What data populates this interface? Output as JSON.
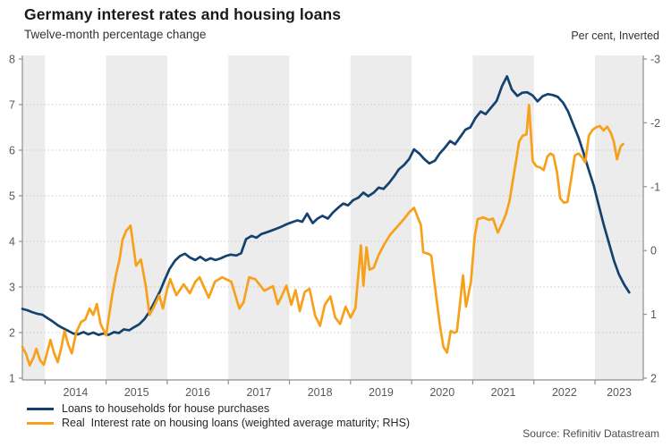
{
  "chart_data": {
    "type": "line",
    "title": "Germany interest rates and housing loans",
    "subtitle": "Twelve-month percentage change",
    "right_axis_note": "Per cent, Inverted",
    "source": "Source: Refinitiv Datastream",
    "palette": {
      "loans_line": "#14426f",
      "real_rate_line": "#F7A11A",
      "band_fill": "#ececec",
      "gridline": "#c8c8c8",
      "axis": "#8f8f8f",
      "tick_text": "#595959"
    },
    "x_domain": [
      2013.63,
      2023.79
    ],
    "x_ticks": [
      2014,
      2015,
      2016,
      2017,
      2018,
      2019,
      2020,
      2021,
      2022,
      2023
    ],
    "bands": [
      [
        2013.63,
        2014
      ],
      [
        2015,
        2016
      ],
      [
        2017,
        2018
      ],
      [
        2019,
        2020
      ],
      [
        2021,
        2022
      ],
      [
        2023,
        2023.79
      ]
    ],
    "left_axis": {
      "min": 1,
      "max": 8,
      "ticks": [
        8,
        7,
        6,
        5,
        4,
        3,
        2,
        1
      ],
      "grid_values": [
        7,
        6,
        5,
        4,
        3,
        2
      ]
    },
    "right_axis": {
      "min": -3,
      "max": 2,
      "ticks": [
        -3,
        -2,
        -1,
        0,
        1,
        2
      ],
      "inverted": true
    },
    "legend_position": "bottom-left",
    "grid": "dotted-horizontal",
    "series": [
      {
        "name": "Loans to households for house purchases",
        "axis": "left",
        "color": "#14426f",
        "points": [
          [
            2013.63,
            2.52
          ],
          [
            2013.71,
            2.49
          ],
          [
            2013.79,
            2.45
          ],
          [
            2013.88,
            2.41
          ],
          [
            2013.96,
            2.39
          ],
          [
            2014.04,
            2.32
          ],
          [
            2014.13,
            2.24
          ],
          [
            2014.21,
            2.16
          ],
          [
            2014.29,
            2.1
          ],
          [
            2014.38,
            2.04
          ],
          [
            2014.46,
            1.98
          ],
          [
            2014.54,
            1.96
          ],
          [
            2014.63,
            2.01
          ],
          [
            2014.71,
            1.96
          ],
          [
            2014.79,
            2.0
          ],
          [
            2014.88,
            1.95
          ],
          [
            2014.96,
            1.98
          ],
          [
            2015.04,
            1.95
          ],
          [
            2015.13,
            2.01
          ],
          [
            2015.21,
            1.99
          ],
          [
            2015.29,
            2.07
          ],
          [
            2015.38,
            2.05
          ],
          [
            2015.46,
            2.12
          ],
          [
            2015.54,
            2.18
          ],
          [
            2015.63,
            2.3
          ],
          [
            2015.71,
            2.46
          ],
          [
            2015.79,
            2.66
          ],
          [
            2015.88,
            2.9
          ],
          [
            2015.96,
            3.16
          ],
          [
            2016.04,
            3.4
          ],
          [
            2016.13,
            3.58
          ],
          [
            2016.21,
            3.68
          ],
          [
            2016.29,
            3.73
          ],
          [
            2016.38,
            3.64
          ],
          [
            2016.46,
            3.59
          ],
          [
            2016.54,
            3.66
          ],
          [
            2016.63,
            3.58
          ],
          [
            2016.71,
            3.63
          ],
          [
            2016.79,
            3.59
          ],
          [
            2016.88,
            3.63
          ],
          [
            2016.96,
            3.68
          ],
          [
            2017.04,
            3.71
          ],
          [
            2017.13,
            3.69
          ],
          [
            2017.21,
            3.74
          ],
          [
            2017.29,
            4.05
          ],
          [
            2017.38,
            4.12
          ],
          [
            2017.46,
            4.08
          ],
          [
            2017.54,
            4.16
          ],
          [
            2017.63,
            4.2
          ],
          [
            2017.71,
            4.24
          ],
          [
            2017.79,
            4.28
          ],
          [
            2017.88,
            4.33
          ],
          [
            2017.96,
            4.38
          ],
          [
            2018.04,
            4.42
          ],
          [
            2018.13,
            4.46
          ],
          [
            2018.21,
            4.43
          ],
          [
            2018.29,
            4.61
          ],
          [
            2018.38,
            4.4
          ],
          [
            2018.46,
            4.5
          ],
          [
            2018.54,
            4.56
          ],
          [
            2018.63,
            4.5
          ],
          [
            2018.71,
            4.63
          ],
          [
            2018.79,
            4.73
          ],
          [
            2018.88,
            4.83
          ],
          [
            2018.96,
            4.79
          ],
          [
            2019.04,
            4.9
          ],
          [
            2019.13,
            4.96
          ],
          [
            2019.21,
            5.07
          ],
          [
            2019.29,
            4.99
          ],
          [
            2019.38,
            5.07
          ],
          [
            2019.46,
            5.18
          ],
          [
            2019.54,
            5.15
          ],
          [
            2019.63,
            5.28
          ],
          [
            2019.71,
            5.42
          ],
          [
            2019.79,
            5.58
          ],
          [
            2019.88,
            5.68
          ],
          [
            2019.96,
            5.81
          ],
          [
            2020.04,
            6.02
          ],
          [
            2020.13,
            5.92
          ],
          [
            2020.21,
            5.8
          ],
          [
            2020.29,
            5.71
          ],
          [
            2020.38,
            5.77
          ],
          [
            2020.46,
            5.93
          ],
          [
            2020.54,
            6.05
          ],
          [
            2020.63,
            6.2
          ],
          [
            2020.71,
            6.13
          ],
          [
            2020.79,
            6.28
          ],
          [
            2020.88,
            6.45
          ],
          [
            2020.96,
            6.5
          ],
          [
            2021.04,
            6.7
          ],
          [
            2021.13,
            6.85
          ],
          [
            2021.21,
            6.79
          ],
          [
            2021.39,
            7.08
          ],
          [
            2021.48,
            7.41
          ],
          [
            2021.56,
            7.62
          ],
          [
            2021.64,
            7.33
          ],
          [
            2021.73,
            7.19
          ],
          [
            2021.81,
            7.26
          ],
          [
            2021.89,
            7.27
          ],
          [
            2021.98,
            7.2
          ],
          [
            2022.06,
            7.07
          ],
          [
            2022.14,
            7.18
          ],
          [
            2022.23,
            7.23
          ],
          [
            2022.31,
            7.21
          ],
          [
            2022.39,
            7.17
          ],
          [
            2022.48,
            7.04
          ],
          [
            2022.56,
            6.85
          ],
          [
            2022.64,
            6.58
          ],
          [
            2022.73,
            6.28
          ],
          [
            2022.81,
            5.95
          ],
          [
            2022.89,
            5.6
          ],
          [
            2022.98,
            5.22
          ],
          [
            2023.06,
            4.8
          ],
          [
            2023.14,
            4.38
          ],
          [
            2023.23,
            3.96
          ],
          [
            2023.31,
            3.58
          ],
          [
            2023.39,
            3.28
          ],
          [
            2023.48,
            3.05
          ],
          [
            2023.56,
            2.88
          ]
        ]
      },
      {
        "name": "Real  Interest rate on housing loans (weighted average maturity; RHS)",
        "axis": "right",
        "color": "#F7A11A",
        "points": [
          [
            2013.63,
            1.51
          ],
          [
            2013.69,
            1.62
          ],
          [
            2013.75,
            1.8
          ],
          [
            2013.81,
            1.68
          ],
          [
            2013.86,
            1.54
          ],
          [
            2013.92,
            1.72
          ],
          [
            2013.98,
            1.79
          ],
          [
            2014.03,
            1.62
          ],
          [
            2014.09,
            1.4
          ],
          [
            2014.15,
            1.61
          ],
          [
            2014.21,
            1.75
          ],
          [
            2014.27,
            1.51
          ],
          [
            2014.32,
            1.26
          ],
          [
            2014.38,
            1.47
          ],
          [
            2014.44,
            1.61
          ],
          [
            2014.51,
            1.29
          ],
          [
            2014.59,
            1.12
          ],
          [
            2014.66,
            1.08
          ],
          [
            2014.73,
            0.91
          ],
          [
            2014.79,
            1.01
          ],
          [
            2014.85,
            0.84
          ],
          [
            2014.91,
            1.15
          ],
          [
            2015.0,
            1.33
          ],
          [
            2015.05,
            1.01
          ],
          [
            2015.1,
            0.7
          ],
          [
            2015.16,
            0.39
          ],
          [
            2015.22,
            0.14
          ],
          [
            2015.27,
            -0.17
          ],
          [
            2015.33,
            -0.31
          ],
          [
            2015.4,
            -0.39
          ],
          [
            2015.49,
            0.24
          ],
          [
            2015.57,
            0.14
          ],
          [
            2015.65,
            0.56
          ],
          [
            2015.71,
            1.01
          ],
          [
            2015.79,
            0.87
          ],
          [
            2015.87,
            0.7
          ],
          [
            2015.93,
            0.91
          ],
          [
            2016.0,
            0.6
          ],
          [
            2016.05,
            0.45
          ],
          [
            2016.15,
            0.7
          ],
          [
            2016.27,
            0.53
          ],
          [
            2016.37,
            0.67
          ],
          [
            2016.46,
            0.49
          ],
          [
            2016.53,
            0.42
          ],
          [
            2016.68,
            0.74
          ],
          [
            2016.78,
            0.49
          ],
          [
            2016.9,
            0.42
          ],
          [
            2017.05,
            0.49
          ],
          [
            2017.18,
            0.91
          ],
          [
            2017.25,
            0.81
          ],
          [
            2017.34,
            0.42
          ],
          [
            2017.44,
            0.45
          ],
          [
            2017.59,
            0.63
          ],
          [
            2017.73,
            0.56
          ],
          [
            2017.81,
            0.84
          ],
          [
            2017.88,
            0.7
          ],
          [
            2017.95,
            0.55
          ],
          [
            2018.03,
            0.85
          ],
          [
            2018.1,
            0.62
          ],
          [
            2018.17,
            0.95
          ],
          [
            2018.25,
            0.65
          ],
          [
            2018.33,
            0.6
          ],
          [
            2018.42,
            1.02
          ],
          [
            2018.5,
            1.18
          ],
          [
            2018.58,
            0.85
          ],
          [
            2018.67,
            0.72
          ],
          [
            2018.75,
            1.05
          ],
          [
            2018.83,
            1.15
          ],
          [
            2018.92,
            0.88
          ],
          [
            2019.0,
            1.05
          ],
          [
            2019.08,
            0.9
          ],
          [
            2019.13,
            0.35
          ],
          [
            2019.17,
            -0.08
          ],
          [
            2019.21,
            0.55
          ],
          [
            2019.26,
            -0.05
          ],
          [
            2019.31,
            0.3
          ],
          [
            2019.38,
            0.27
          ],
          [
            2019.46,
            0.07
          ],
          [
            2019.56,
            -0.11
          ],
          [
            2019.65,
            -0.25
          ],
          [
            2019.78,
            -0.39
          ],
          [
            2019.88,
            -0.5
          ],
          [
            2019.96,
            -0.6
          ],
          [
            2020.04,
            -0.67
          ],
          [
            2020.1,
            -0.52
          ],
          [
            2020.15,
            -0.4
          ],
          [
            2020.19,
            0.03
          ],
          [
            2020.27,
            0.05
          ],
          [
            2020.32,
            0.08
          ],
          [
            2020.4,
            0.7
          ],
          [
            2020.46,
            1.15
          ],
          [
            2020.52,
            1.51
          ],
          [
            2020.58,
            1.6
          ],
          [
            2020.64,
            1.26
          ],
          [
            2020.7,
            1.29
          ],
          [
            2020.74,
            1.27
          ],
          [
            2020.79,
            0.84
          ],
          [
            2020.84,
            0.39
          ],
          [
            2020.89,
            0.88
          ],
          [
            2020.97,
            0.49
          ],
          [
            2021.03,
            -0.21
          ],
          [
            2021.08,
            -0.49
          ],
          [
            2021.17,
            -0.52
          ],
          [
            2021.26,
            -0.48
          ],
          [
            2021.33,
            -0.5
          ],
          [
            2021.41,
            -0.28
          ],
          [
            2021.47,
            -0.4
          ],
          [
            2021.54,
            -0.56
          ],
          [
            2021.6,
            -0.77
          ],
          [
            2021.66,
            -1.12
          ],
          [
            2021.72,
            -1.47
          ],
          [
            2021.76,
            -1.71
          ],
          [
            2021.82,
            -1.8
          ],
          [
            2021.88,
            -1.82
          ],
          [
            2021.92,
            -2.28
          ],
          [
            2021.98,
            -1.4
          ],
          [
            2022.04,
            -1.32
          ],
          [
            2022.1,
            -1.3
          ],
          [
            2022.16,
            -1.26
          ],
          [
            2022.22,
            -1.47
          ],
          [
            2022.27,
            -1.52
          ],
          [
            2022.32,
            -1.49
          ],
          [
            2022.38,
            -1.22
          ],
          [
            2022.43,
            -0.82
          ],
          [
            2022.49,
            -0.75
          ],
          [
            2022.55,
            -0.76
          ],
          [
            2022.61,
            -1.12
          ],
          [
            2022.67,
            -1.49
          ],
          [
            2022.73,
            -1.52
          ],
          [
            2022.79,
            -1.46
          ],
          [
            2022.84,
            -1.38
          ],
          [
            2022.9,
            -1.8
          ],
          [
            2022.96,
            -1.89
          ],
          [
            2023.02,
            -1.93
          ],
          [
            2023.08,
            -1.95
          ],
          [
            2023.14,
            -1.88
          ],
          [
            2023.2,
            -1.94
          ],
          [
            2023.26,
            -1.84
          ],
          [
            2023.31,
            -1.7
          ],
          [
            2023.36,
            -1.43
          ],
          [
            2023.42,
            -1.63
          ],
          [
            2023.46,
            -1.67
          ]
        ]
      }
    ]
  }
}
